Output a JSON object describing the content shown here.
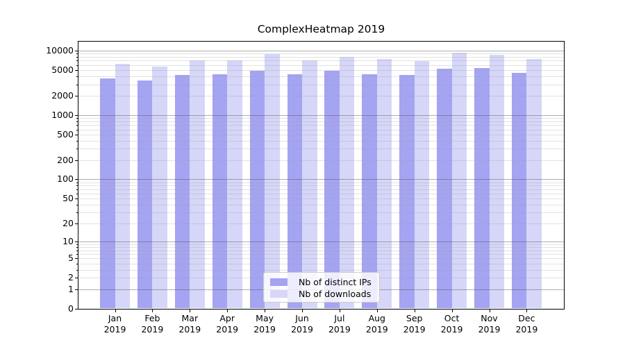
{
  "chart_data": {
    "type": "bar",
    "title": "ComplexHeatmap 2019",
    "categories": [
      "Jan 2019",
      "Feb 2019",
      "Mar 2019",
      "Apr 2019",
      "May 2019",
      "Jun 2019",
      "Jul 2019",
      "Aug 2019",
      "Sep 2019",
      "Oct 2019",
      "Nov 2019",
      "Dec 2019"
    ],
    "series": [
      {
        "name": "Nb of distinct IPs",
        "color": "#a4a4f2",
        "values": [
          3700,
          3450,
          4200,
          4300,
          4900,
          4280,
          4850,
          4300,
          4250,
          5300,
          5450,
          4570
        ]
      },
      {
        "name": "Nb of downloads",
        "color": "#d6d6f8",
        "values": [
          6300,
          5700,
          7050,
          7000,
          8750,
          7100,
          8100,
          7450,
          6900,
          9250,
          8700,
          7400
        ]
      }
    ],
    "xlabel": "",
    "ylabel": "",
    "yscale": "log1p",
    "ylim": [
      0,
      14000
    ],
    "yticks": [
      0,
      1,
      2,
      5,
      10,
      20,
      50,
      100,
      200,
      500,
      1000,
      2000,
      5000,
      10000
    ],
    "grid": {
      "show": true,
      "orientation": "horizontal",
      "major_at": [
        1,
        10,
        100,
        1000,
        10000
      ],
      "drawn_over_bars": true
    },
    "legend_position": "lower center"
  }
}
